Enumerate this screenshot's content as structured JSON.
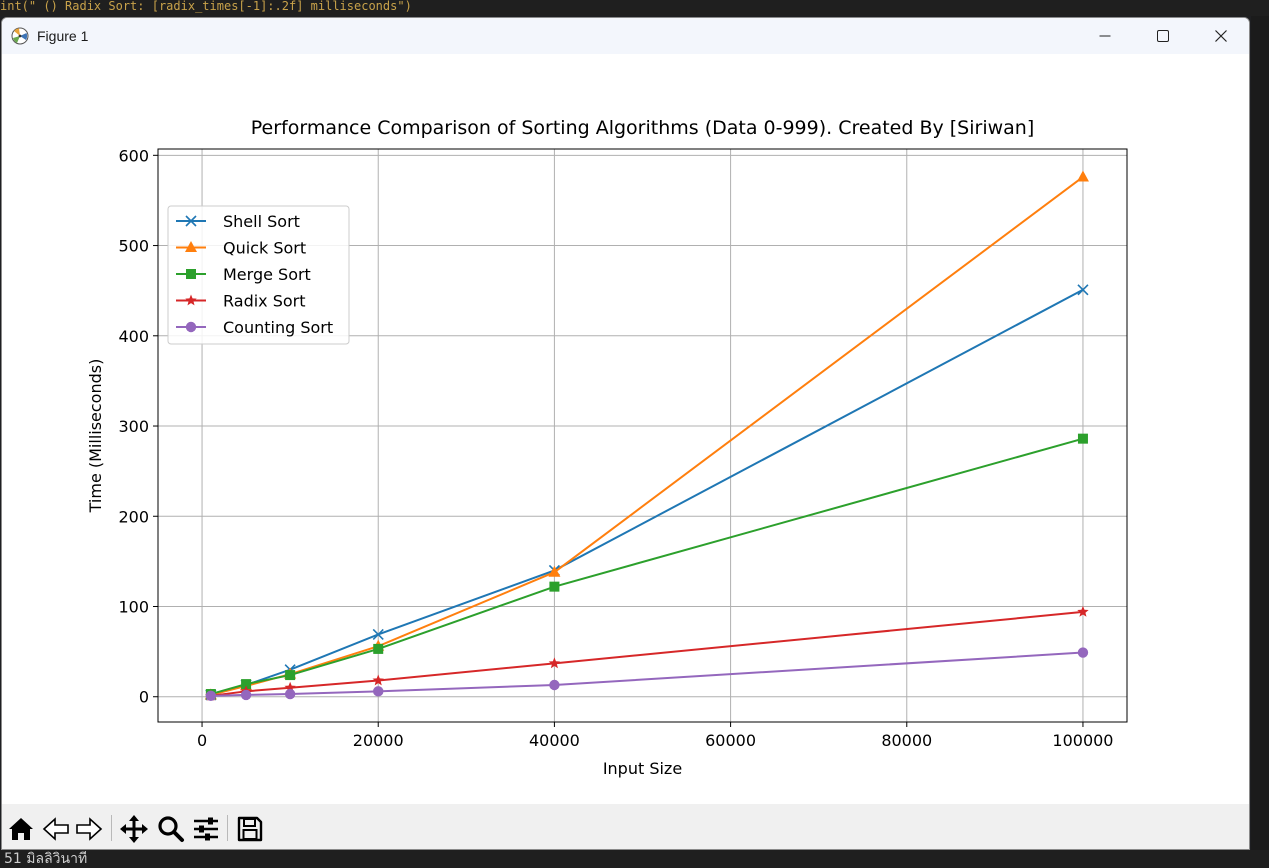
{
  "window": {
    "title": "Figure 1"
  },
  "background": {
    "code_line": "int(\"  ()  Radix Sort: [radix_times[-1]:.2f] milliseconds\")",
    "status_line": "51 มิลลิวินาที"
  },
  "toolbar": {
    "items": [
      "home-icon",
      "back-icon",
      "forward-icon",
      "pan-icon",
      "zoom-icon",
      "configure-subplots-icon",
      "save-icon"
    ]
  },
  "colors": {
    "shell": "#1f77b4",
    "quick": "#ff7f0e",
    "merge": "#2ca02c",
    "radix": "#d62728",
    "counting": "#9467bd"
  },
  "chart_data": {
    "type": "line",
    "title": "Performance Comparison of Sorting Algorithms (Data 0-999). Created By [Siriwan]",
    "xlabel": "Input Size",
    "ylabel": "Time (Milliseconds)",
    "xlim": [
      -5000,
      105000
    ],
    "ylim": [
      -28,
      607
    ],
    "xticks": [
      0,
      20000,
      40000,
      60000,
      80000,
      100000
    ],
    "yticks": [
      0,
      100,
      200,
      300,
      400,
      500,
      600
    ],
    "grid": true,
    "legend_position": "upper left",
    "x": [
      1000,
      5000,
      10000,
      20000,
      40000,
      100000
    ],
    "series": [
      {
        "name": "Shell Sort",
        "marker": "x",
        "color": "#1f77b4",
        "values": [
          2,
          13,
          30,
          69,
          140,
          451
        ]
      },
      {
        "name": "Quick Sort",
        "marker": "triangle",
        "color": "#ff7f0e",
        "values": [
          2,
          12,
          25,
          56,
          138,
          576
        ]
      },
      {
        "name": "Merge Sort",
        "marker": "square",
        "color": "#2ca02c",
        "values": [
          3,
          14,
          24,
          53,
          122,
          286
        ]
      },
      {
        "name": "Radix Sort",
        "marker": "star",
        "color": "#d62728",
        "values": [
          1,
          6,
          10,
          18,
          37,
          94
        ]
      },
      {
        "name": "Counting Sort",
        "marker": "circle",
        "color": "#9467bd",
        "values": [
          1,
          2,
          3,
          6,
          13,
          49
        ]
      }
    ]
  }
}
